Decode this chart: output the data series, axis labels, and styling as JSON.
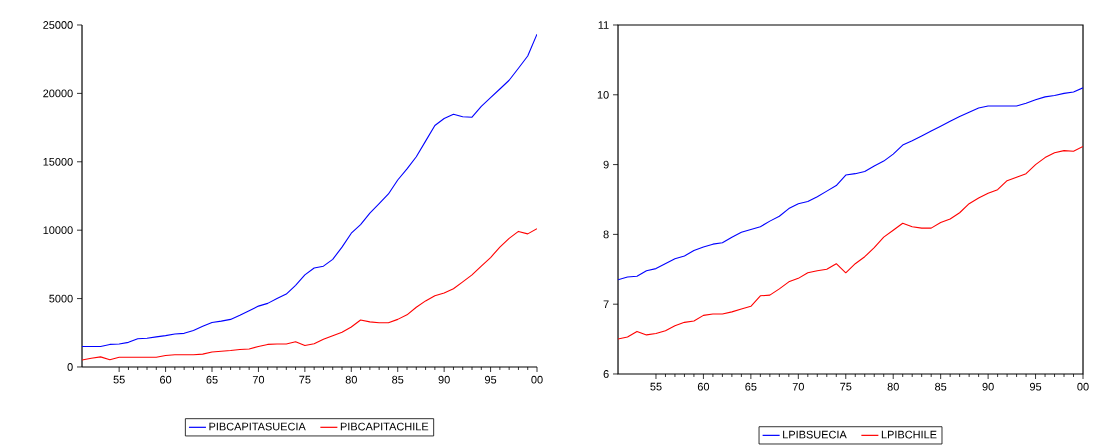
{
  "chart_data": [
    {
      "type": "line",
      "legend": "bottom",
      "grid": false,
      "x": [
        1951,
        1952,
        1953,
        1954,
        1955,
        1956,
        1957,
        1958,
        1959,
        1960,
        1961,
        1962,
        1963,
        1964,
        1965,
        1966,
        1967,
        1968,
        1969,
        1970,
        1971,
        1972,
        1973,
        1974,
        1975,
        1976,
        1977,
        1978,
        1979,
        1980,
        1981,
        1982,
        1983,
        1984,
        1985,
        1986,
        1987,
        1988,
        1989,
        1990,
        1991,
        1992,
        1993,
        1994,
        1995,
        1996,
        1997,
        1998,
        1999,
        2000
      ],
      "xlim": [
        1951,
        2000
      ],
      "xticks": [
        {
          "value": 1955,
          "label": "55"
        },
        {
          "value": 1960,
          "label": "60"
        },
        {
          "value": 1965,
          "label": "65"
        },
        {
          "value": 1970,
          "label": "70"
        },
        {
          "value": 1975,
          "label": "75"
        },
        {
          "value": 1980,
          "label": "80"
        },
        {
          "value": 1985,
          "label": "85"
        },
        {
          "value": 1990,
          "label": "90"
        },
        {
          "value": 1995,
          "label": "95"
        },
        {
          "value": 2000,
          "label": "00"
        }
      ],
      "ylim": [
        0,
        25000
      ],
      "yticks": [
        0,
        5000,
        10000,
        15000,
        20000,
        25000
      ],
      "series": [
        {
          "name": "PIBCAPITASUECIA",
          "color": "#0000ff",
          "values": [
            1500,
            1500,
            1500,
            1650,
            1680,
            1800,
            2060,
            2100,
            2200,
            2290,
            2410,
            2460,
            2670,
            2970,
            3250,
            3350,
            3480,
            3780,
            4110,
            4450,
            4650,
            5000,
            5330,
            5970,
            6730,
            7240,
            7370,
            7870,
            8760,
            9780,
            10410,
            11250,
            11940,
            12650,
            13670,
            14480,
            15370,
            16510,
            17650,
            18160,
            18470,
            18290,
            18260,
            19050,
            19690,
            20320,
            20960,
            21840,
            22730,
            24330
          ]
        },
        {
          "name": "PIBCAPITACHILE",
          "color": "#ff0000",
          "values": [
            510,
            640,
            740,
            530,
            710,
            710,
            710,
            710,
            710,
            840,
            890,
            890,
            890,
            940,
            1090,
            1150,
            1200,
            1280,
            1320,
            1500,
            1650,
            1680,
            1680,
            1850,
            1570,
            1700,
            2030,
            2290,
            2540,
            2920,
            3430,
            3300,
            3230,
            3230,
            3480,
            3810,
            4370,
            4830,
            5210,
            5410,
            5720,
            6220,
            6730,
            7370,
            8000,
            8760,
            9400,
            9910,
            9730,
            10110
          ]
        }
      ]
    },
    {
      "type": "line",
      "legend": "bottom",
      "grid": false,
      "x": [
        1951,
        1952,
        1953,
        1954,
        1955,
        1956,
        1957,
        1958,
        1959,
        1960,
        1961,
        1962,
        1963,
        1964,
        1965,
        1966,
        1967,
        1968,
        1969,
        1970,
        1971,
        1972,
        1973,
        1974,
        1975,
        1976,
        1977,
        1978,
        1979,
        1980,
        1981,
        1982,
        1983,
        1984,
        1985,
        1986,
        1987,
        1988,
        1989,
        1990,
        1991,
        1992,
        1993,
        1994,
        1995,
        1996,
        1997,
        1998,
        1999,
        2000
      ],
      "xlim": [
        1951,
        2000
      ],
      "xticks": [
        {
          "value": 1955,
          "label": "55"
        },
        {
          "value": 1960,
          "label": "60"
        },
        {
          "value": 1965,
          "label": "65"
        },
        {
          "value": 1970,
          "label": "70"
        },
        {
          "value": 1975,
          "label": "75"
        },
        {
          "value": 1980,
          "label": "80"
        },
        {
          "value": 1985,
          "label": "85"
        },
        {
          "value": 1990,
          "label": "90"
        },
        {
          "value": 1995,
          "label": "95"
        },
        {
          "value": 2000,
          "label": "00"
        }
      ],
      "ylim": [
        6,
        11
      ],
      "yticks": [
        6,
        7,
        8,
        9,
        10,
        11
      ],
      "series": [
        {
          "name": "LPIBSUECIA",
          "color": "#0000ff",
          "values": [
            7.35,
            7.39,
            7.4,
            7.48,
            7.51,
            7.58,
            7.65,
            7.69,
            7.77,
            7.82,
            7.86,
            7.88,
            7.96,
            8.03,
            8.07,
            8.11,
            8.19,
            8.26,
            8.37,
            8.44,
            8.47,
            8.54,
            8.62,
            8.7,
            8.85,
            8.87,
            8.9,
            8.98,
            9.05,
            9.15,
            9.28,
            9.34,
            9.41,
            9.48,
            9.55,
            9.62,
            9.69,
            9.75,
            9.81,
            9.84,
            9.84,
            9.84,
            9.84,
            9.88,
            9.93,
            9.97,
            9.99,
            10.02,
            10.04,
            10.1
          ]
        },
        {
          "name": "LPIBCHILE",
          "color": "#ff0000",
          "values": [
            6.5,
            6.53,
            6.61,
            6.56,
            6.58,
            6.62,
            6.69,
            6.74,
            6.76,
            6.84,
            6.86,
            6.86,
            6.89,
            6.93,
            6.97,
            7.12,
            7.13,
            7.22,
            7.32,
            7.37,
            7.45,
            7.48,
            7.5,
            7.58,
            7.45,
            7.58,
            7.68,
            7.81,
            7.96,
            8.06,
            8.16,
            8.11,
            8.09,
            8.09,
            8.17,
            8.22,
            8.31,
            8.44,
            8.52,
            8.59,
            8.64,
            8.77,
            8.82,
            8.87,
            9.0,
            9.1,
            9.17,
            9.2,
            9.19,
            9.26
          ]
        }
      ]
    }
  ]
}
